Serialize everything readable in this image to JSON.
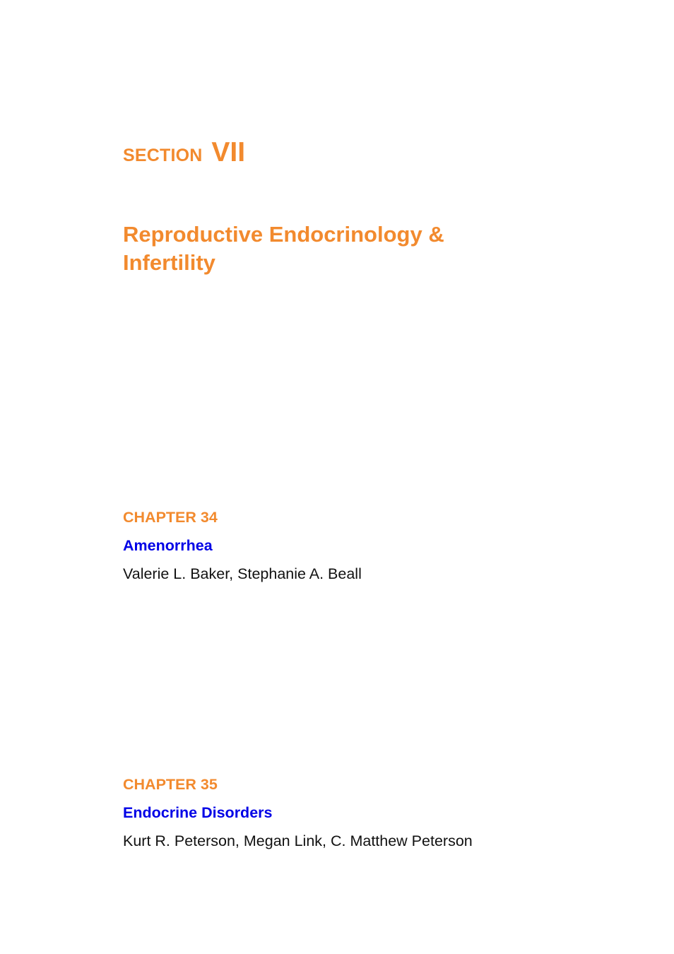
{
  "section": {
    "label": "SECTION",
    "numeral": "VII",
    "title_line1": "Reproductive Endocrinology &",
    "title_line2": "Infertility"
  },
  "chapters": [
    {
      "number": "CHAPTER 34",
      "title": "Amenorrhea",
      "authors": "Valerie L. Baker, Stephanie A. Beall"
    },
    {
      "number": "CHAPTER 35",
      "title": "Endocrine Disorders",
      "authors": "Kurt R. Peterson, Megan Link, C. Matthew Peterson"
    }
  ],
  "colors": {
    "heading_orange": "#f28a2e",
    "link_blue": "#0000e6",
    "body_text": "#111111",
    "background": "#ffffff"
  }
}
